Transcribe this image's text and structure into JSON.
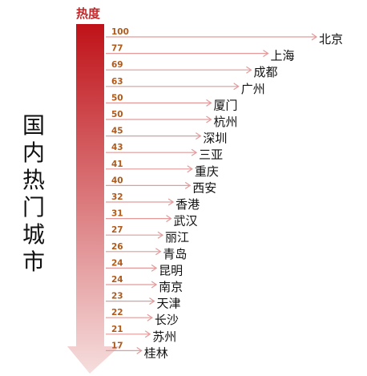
{
  "side_title": "国内热门城市",
  "chart_data": {
    "type": "bar",
    "title": "",
    "value_axis_label": "热度",
    "categories": [
      "北京",
      "上海",
      "成都",
      "广州",
      "厦门",
      "杭州",
      "深圳",
      "三亚",
      "重庆",
      "西安",
      "香港",
      "武汉",
      "丽江",
      "青岛",
      "昆明",
      "南京",
      "天津",
      "长沙",
      "苏州",
      "桂林"
    ],
    "values": [
      100,
      77,
      69,
      63,
      50,
      50,
      45,
      43,
      41,
      40,
      32,
      31,
      27,
      26,
      24,
      24,
      23,
      22,
      21,
      17
    ],
    "colors": {
      "gradient_top": "#bf1218",
      "gradient_bottom": "#f6dede",
      "arrow_line": "#e39a9a",
      "value_text": "#b05a1c",
      "label_text": "#111111",
      "heat_label": "#c4282a"
    }
  }
}
